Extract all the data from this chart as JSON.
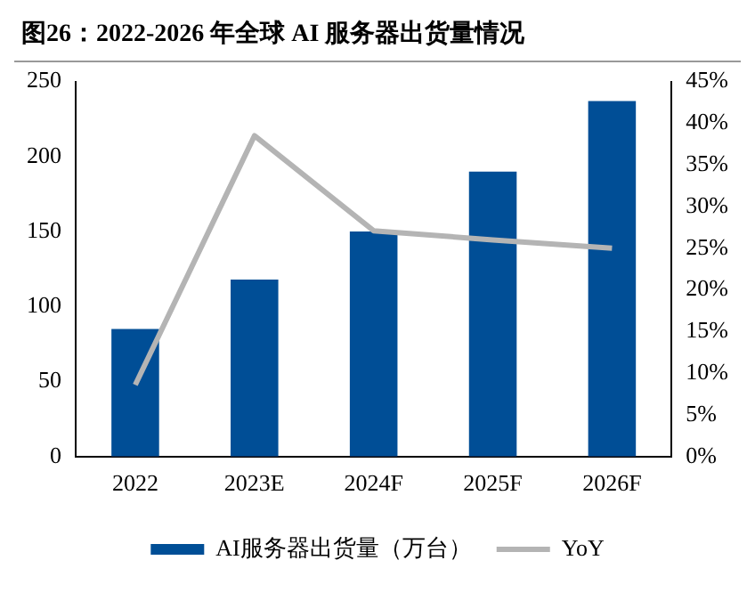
{
  "chart_data": {
    "type": "bar",
    "title": "图26：2022-2026 年全球 AI 服务器出货量情况",
    "categories": [
      "2022",
      "2023E",
      "2024F",
      "2025F",
      "2026F"
    ],
    "series": [
      {
        "name": "AI服务器出货量（万台）",
        "color": "#004e96",
        "values": [
          85,
          118,
          150,
          190,
          237
        ]
      },
      {
        "name": "YoY",
        "type": "line",
        "axis": "y2",
        "color": "#b4b4b4",
        "values": [
          8.6,
          38.5,
          27.1,
          26,
          25
        ]
      }
    ],
    "ylim": [
      0,
      250
    ],
    "yticks": [
      0,
      50,
      100,
      150,
      200,
      250
    ],
    "y2lim": [
      0,
      45
    ],
    "y2ticks": [
      {
        "value": 0,
        "label": "0%"
      },
      {
        "value": 5,
        "label": "5%"
      },
      {
        "value": 10,
        "label": "10%"
      },
      {
        "value": 15,
        "label": "15%"
      },
      {
        "value": 20,
        "label": "20%"
      },
      {
        "value": 25,
        "label": "25%"
      },
      {
        "value": 30,
        "label": "30%"
      },
      {
        "value": 35,
        "label": "35%"
      },
      {
        "value": 40,
        "label": "40%"
      },
      {
        "value": 45,
        "label": "45%"
      }
    ],
    "grid": false,
    "legend": "bottom",
    "marker": "none"
  }
}
